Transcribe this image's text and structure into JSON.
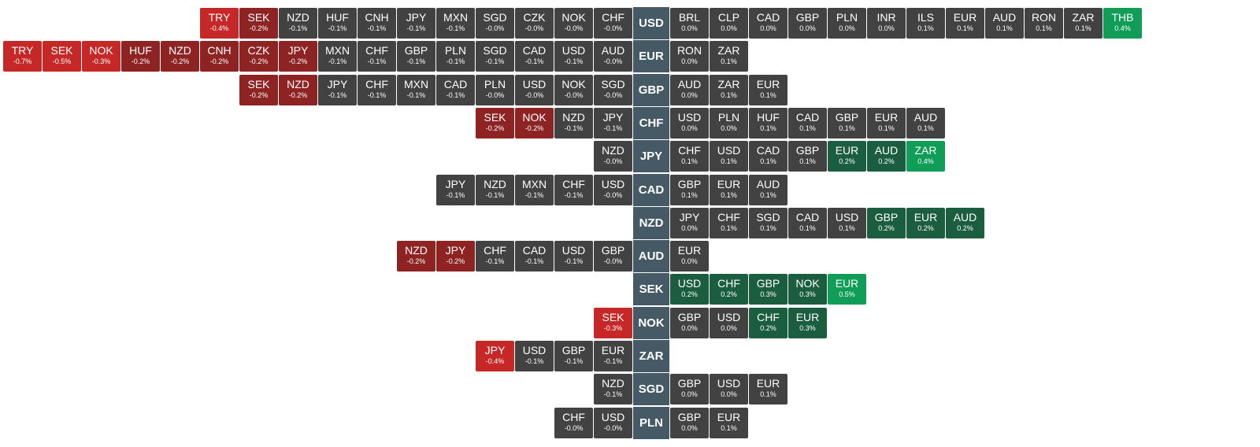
{
  "chart_data": {
    "type": "heatmap",
    "colors": {
      "neutral": "#424242",
      "down_mild": "#8d2323",
      "down_strong": "#c62828",
      "up_mild": "#1b5e3f",
      "up_strong": "#0f9d58",
      "base": "#455a64"
    },
    "rows": [
      {
        "base": "USD",
        "left": [
          [
            "TRY",
            "-0.4%"
          ],
          [
            "SEK",
            "-0.2%"
          ],
          [
            "NZD",
            "-0.1%"
          ],
          [
            "HUF",
            "-0.1%"
          ],
          [
            "CNH",
            "-0.1%"
          ],
          [
            "JPY",
            "-0.1%"
          ],
          [
            "MXN",
            "-0.1%"
          ],
          [
            "SGD",
            "-0.0%"
          ],
          [
            "CZK",
            "-0.0%"
          ],
          [
            "NOK",
            "-0.0%"
          ],
          [
            "CHF",
            "-0.0%"
          ]
        ],
        "right": [
          [
            "BRL",
            "0.0%"
          ],
          [
            "CLP",
            "0.0%"
          ],
          [
            "CAD",
            "0.0%"
          ],
          [
            "GBP",
            "0.0%"
          ],
          [
            "PLN",
            "0.0%"
          ],
          [
            "INR",
            "0.0%"
          ],
          [
            "ILS",
            "0.1%"
          ],
          [
            "EUR",
            "0.1%"
          ],
          [
            "AUD",
            "0.1%"
          ],
          [
            "RON",
            "0.1%"
          ],
          [
            "ZAR",
            "0.1%"
          ],
          [
            "THB",
            "0.4%"
          ]
        ]
      },
      {
        "base": "EUR",
        "left": [
          [
            "TRY",
            "-0.7%"
          ],
          [
            "SEK",
            "-0.5%"
          ],
          [
            "NOK",
            "-0.3%"
          ],
          [
            "HUF",
            "-0.2%"
          ],
          [
            "NZD",
            "-0.2%"
          ],
          [
            "CNH",
            "-0.2%"
          ],
          [
            "CZK",
            "-0.2%"
          ],
          [
            "JPY",
            "-0.2%"
          ],
          [
            "MXN",
            "-0.1%"
          ],
          [
            "CHF",
            "-0.1%"
          ],
          [
            "GBP",
            "-0.1%"
          ],
          [
            "PLN",
            "-0.1%"
          ],
          [
            "SGD",
            "-0.1%"
          ],
          [
            "CAD",
            "-0.1%"
          ],
          [
            "USD",
            "-0.1%"
          ],
          [
            "AUD",
            "-0.0%"
          ]
        ],
        "right": [
          [
            "RON",
            "0.0%"
          ],
          [
            "ZAR",
            "0.1%"
          ]
        ]
      },
      {
        "base": "GBP",
        "left": [
          [
            "SEK",
            "-0.2%"
          ],
          [
            "NZD",
            "-0.2%"
          ],
          [
            "JPY",
            "-0.1%"
          ],
          [
            "CHF",
            "-0.1%"
          ],
          [
            "MXN",
            "-0.1%"
          ],
          [
            "CAD",
            "-0.1%"
          ],
          [
            "PLN",
            "-0.0%"
          ],
          [
            "USD",
            "-0.0%"
          ],
          [
            "NOK",
            "-0.0%"
          ],
          [
            "SGD",
            "-0.0%"
          ]
        ],
        "right": [
          [
            "AUD",
            "0.0%"
          ],
          [
            "ZAR",
            "0.1%"
          ],
          [
            "EUR",
            "0.1%"
          ]
        ]
      },
      {
        "base": "CHF",
        "left": [
          [
            "SEK",
            "-0.2%"
          ],
          [
            "NOK",
            "-0.2%"
          ],
          [
            "NZD",
            "-0.1%"
          ],
          [
            "JPY",
            "-0.1%"
          ]
        ],
        "right": [
          [
            "USD",
            "0.0%"
          ],
          [
            "PLN",
            "0.0%"
          ],
          [
            "HUF",
            "0.1%"
          ],
          [
            "CAD",
            "0.1%"
          ],
          [
            "GBP",
            "0.1%"
          ],
          [
            "EUR",
            "0.1%"
          ],
          [
            "AUD",
            "0.1%"
          ]
        ]
      },
      {
        "base": "JPY",
        "left": [
          [
            "NZD",
            "-0.0%"
          ]
        ],
        "right": [
          [
            "CHF",
            "0.1%"
          ],
          [
            "USD",
            "0.1%"
          ],
          [
            "CAD",
            "0.1%"
          ],
          [
            "GBP",
            "0.1%"
          ],
          [
            "EUR",
            "0.2%"
          ],
          [
            "AUD",
            "0.2%"
          ],
          [
            "ZAR",
            "0.4%"
          ]
        ]
      },
      {
        "base": "CAD",
        "left": [
          [
            "JPY",
            "-0.1%"
          ],
          [
            "NZD",
            "-0.1%"
          ],
          [
            "MXN",
            "-0.1%"
          ],
          [
            "CHF",
            "-0.1%"
          ],
          [
            "USD",
            "-0.0%"
          ]
        ],
        "right": [
          [
            "GBP",
            "0.1%"
          ],
          [
            "EUR",
            "0.1%"
          ],
          [
            "AUD",
            "0.1%"
          ]
        ]
      },
      {
        "base": "NZD",
        "left": [],
        "right": [
          [
            "JPY",
            "0.0%"
          ],
          [
            "CHF",
            "0.1%"
          ],
          [
            "SGD",
            "0.1%"
          ],
          [
            "CAD",
            "0.1%"
          ],
          [
            "USD",
            "0.1%"
          ],
          [
            "GBP",
            "0.2%"
          ],
          [
            "EUR",
            "0.2%"
          ],
          [
            "AUD",
            "0.2%"
          ]
        ]
      },
      {
        "base": "AUD",
        "left": [
          [
            "NZD",
            "-0.2%"
          ],
          [
            "JPY",
            "-0.2%"
          ],
          [
            "CHF",
            "-0.1%"
          ],
          [
            "CAD",
            "-0.1%"
          ],
          [
            "USD",
            "-0.1%"
          ],
          [
            "GBP",
            "-0.0%"
          ]
        ],
        "right": [
          [
            "EUR",
            "0.0%"
          ]
        ]
      },
      {
        "base": "SEK",
        "left": [],
        "right": [
          [
            "USD",
            "0.2%"
          ],
          [
            "CHF",
            "0.2%"
          ],
          [
            "GBP",
            "0.3%"
          ],
          [
            "NOK",
            "0.3%"
          ],
          [
            "EUR",
            "0.5%"
          ]
        ]
      },
      {
        "base": "NOK",
        "left": [
          [
            "SEK",
            "-0.3%"
          ]
        ],
        "right": [
          [
            "GBP",
            "0.0%"
          ],
          [
            "USD",
            "0.0%"
          ],
          [
            "CHF",
            "0.2%"
          ],
          [
            "EUR",
            "0.3%"
          ]
        ]
      },
      {
        "base": "ZAR",
        "left": [
          [
            "JPY",
            "-0.4%"
          ],
          [
            "USD",
            "-0.1%"
          ],
          [
            "GBP",
            "-0.1%"
          ],
          [
            "EUR",
            "-0.1%"
          ]
        ],
        "right": []
      },
      {
        "base": "SGD",
        "left": [
          [
            "NZD",
            "-0.1%"
          ]
        ],
        "right": [
          [
            "GBP",
            "0.0%"
          ],
          [
            "USD",
            "0.0%"
          ],
          [
            "EUR",
            "0.1%"
          ]
        ]
      },
      {
        "base": "PLN",
        "left": [
          [
            "CHF",
            "-0.0%"
          ],
          [
            "USD",
            "-0.0%"
          ]
        ],
        "right": [
          [
            "GBP",
            "0.0%"
          ],
          [
            "EUR",
            "0.1%"
          ]
        ]
      }
    ]
  }
}
